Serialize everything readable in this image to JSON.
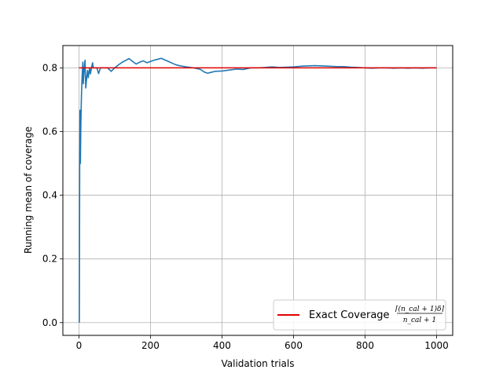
{
  "chart_data": {
    "type": "line",
    "xlabel": "Validation trials",
    "ylabel": "Running mean of coverage",
    "xlim": [
      -45,
      1045
    ],
    "ylim": [
      -0.04,
      0.87
    ],
    "x_ticks": [
      0,
      200,
      400,
      600,
      800,
      1000
    ],
    "y_ticks": [
      0.0,
      0.2,
      0.4,
      0.6,
      0.8
    ],
    "x_tick_labels": [
      "0",
      "200",
      "400",
      "600",
      "800",
      "1000"
    ],
    "y_tick_labels": [
      "0.0",
      "0.2",
      "0.4",
      "0.6",
      "0.8"
    ],
    "grid": true,
    "legend_position": "lower-right",
    "series": [
      {
        "color": "#1f77b4",
        "x": [
          1,
          2,
          3,
          4,
          5,
          6,
          7,
          8,
          9,
          10,
          11,
          12,
          13,
          14,
          15,
          16,
          17,
          18,
          19,
          20,
          22,
          24,
          26,
          28,
          30,
          32,
          35,
          38,
          40,
          45,
          50,
          55,
          60,
          70,
          80,
          90,
          100,
          110,
          120,
          130,
          140,
          150,
          160,
          170,
          180,
          190,
          200,
          210,
          220,
          230,
          240,
          250,
          260,
          270,
          280,
          290,
          300,
          320,
          340,
          350,
          360,
          370,
          380,
          400,
          420,
          440,
          460,
          480,
          500,
          520,
          540,
          560,
          580,
          600,
          620,
          640,
          660,
          680,
          700,
          720,
          740,
          760,
          780,
          800,
          820,
          840,
          860,
          880,
          900,
          920,
          940,
          960,
          980,
          1000
        ],
        "y": [
          0.0,
          0.5,
          0.667,
          0.5,
          0.6,
          0.667,
          0.714,
          0.75,
          0.778,
          0.8,
          0.818,
          0.75,
          0.769,
          0.786,
          0.8,
          0.813,
          0.824,
          0.778,
          0.737,
          0.75,
          0.773,
          0.792,
          0.769,
          0.786,
          0.8,
          0.781,
          0.8,
          0.816,
          0.8,
          0.8,
          0.8,
          0.782,
          0.8,
          0.8,
          0.8,
          0.789,
          0.8,
          0.809,
          0.817,
          0.823,
          0.829,
          0.82,
          0.812,
          0.818,
          0.822,
          0.816,
          0.82,
          0.824,
          0.827,
          0.83,
          0.825,
          0.82,
          0.815,
          0.81,
          0.807,
          0.805,
          0.803,
          0.8,
          0.795,
          0.787,
          0.783,
          0.786,
          0.789,
          0.79,
          0.793,
          0.796,
          0.795,
          0.8,
          0.8,
          0.801,
          0.803,
          0.801,
          0.802,
          0.803,
          0.805,
          0.806,
          0.807,
          0.806,
          0.805,
          0.804,
          0.804,
          0.802,
          0.801,
          0.8,
          0.799,
          0.8,
          0.8,
          0.799,
          0.8,
          0.799,
          0.8,
          0.799,
          0.8,
          0.8
        ]
      },
      {
        "name": "Exact Coverage",
        "color": "#e00000",
        "x": [
          0,
          1000
        ],
        "y": [
          0.8,
          0.8
        ]
      }
    ],
    "legend": {
      "label": "Exact Coverage",
      "numerator": "⌈(n_cal + 1)δ⌉",
      "denominator": "n_cal + 1"
    }
  }
}
